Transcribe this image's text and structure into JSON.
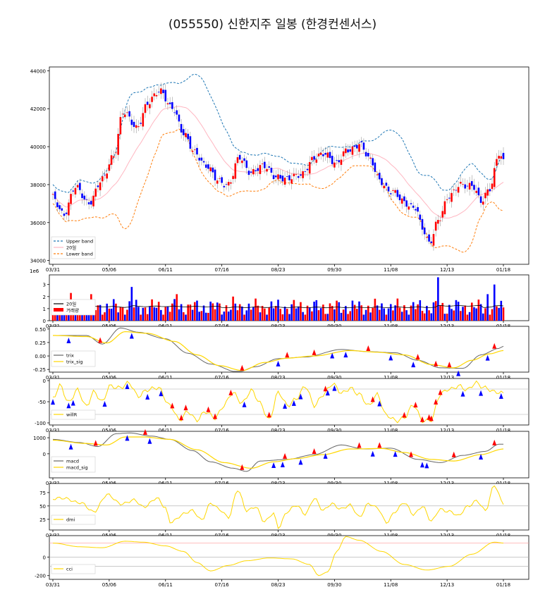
{
  "title": "(055550) 신한지주 일봉 (한경컨센서스)",
  "x_ticks": [
    "03/31",
    "05/06",
    "06/11",
    "07/16",
    "08/23",
    "09/30",
    "11/08",
    "12/13",
    "01/18"
  ],
  "colors": {
    "up": "#ff0000",
    "down": "#0000ff",
    "band": "#1f77b4",
    "lower": "#ff7f0e",
    "ma": "#ffb6c1",
    "signal": "#ffd700",
    "line": "#666666"
  },
  "chart_data": [
    {
      "type": "candlestick",
      "panel": "price",
      "ylim": [
        33800,
        44200
      ],
      "yticks": [
        34000,
        36000,
        38000,
        40000,
        42000,
        44000
      ],
      "legend": [
        "Upper band",
        "20일",
        "Lower band"
      ],
      "close_anchors": [
        [
          0,
          37300
        ],
        [
          5,
          36500
        ],
        [
          10,
          37800
        ],
        [
          16,
          37100
        ],
        [
          22,
          38200
        ],
        [
          27,
          39600
        ],
        [
          31,
          41800
        ],
        [
          37,
          41000
        ],
        [
          42,
          42300
        ],
        [
          48,
          42900
        ],
        [
          53,
          42100
        ],
        [
          58,
          40600
        ],
        [
          63,
          39800
        ],
        [
          68,
          38900
        ],
        [
          73,
          38300
        ],
        [
          78,
          38000
        ],
        [
          83,
          39400
        ],
        [
          88,
          38700
        ],
        [
          94,
          38900
        ],
        [
          99,
          38500
        ],
        [
          104,
          38200
        ],
        [
          110,
          38600
        ],
        [
          116,
          39300
        ],
        [
          121,
          39700
        ],
        [
          126,
          39100
        ],
        [
          131,
          39800
        ],
        [
          136,
          40200
        ],
        [
          141,
          39200
        ],
        [
          145,
          38300
        ],
        [
          150,
          37600
        ],
        [
          156,
          37100
        ],
        [
          161,
          36800
        ],
        [
          164,
          35600
        ],
        [
          167,
          34900
        ],
        [
          171,
          36200
        ],
        [
          176,
          37300
        ],
        [
          181,
          38100
        ],
        [
          186,
          37900
        ],
        [
          190,
          37100
        ],
        [
          194,
          37900
        ],
        [
          198,
          39600
        ],
        [
          200,
          39100
        ]
      ]
    },
    {
      "type": "bar",
      "panel": "volume",
      "ylim": [
        0,
        3.8
      ],
      "yticks": [
        0,
        1,
        2,
        3
      ],
      "exponent_label": "1e6",
      "legend": [
        "20일",
        "거래량"
      ],
      "spikes": [
        [
          8,
          2.3
        ],
        [
          17,
          2.2
        ],
        [
          35,
          2.8
        ],
        [
          55,
          2.2
        ],
        [
          80,
          2.0
        ],
        [
          171,
          3.6
        ],
        [
          193,
          2.2
        ],
        [
          196,
          3.0
        ]
      ]
    },
    {
      "type": "line",
      "panel": "trix",
      "ylim": [
        -0.3,
        0.55
      ],
      "yticks": [
        0.5,
        0.25,
        0,
        -0.25
      ],
      "legend": [
        "trix",
        "trix_sig"
      ],
      "anchors": [
        [
          0,
          0.38
        ],
        [
          15,
          0.38
        ],
        [
          22,
          0.22
        ],
        [
          30,
          0.52
        ],
        [
          38,
          0.44
        ],
        [
          50,
          0.32
        ],
        [
          60,
          0.05
        ],
        [
          70,
          -0.15
        ],
        [
          82,
          -0.3
        ],
        [
          90,
          -0.2
        ],
        [
          100,
          -0.05
        ],
        [
          112,
          -0.02
        ],
        [
          128,
          0.12
        ],
        [
          140,
          0.08
        ],
        [
          152,
          0.06
        ],
        [
          162,
          -0.08
        ],
        [
          172,
          -0.22
        ],
        [
          182,
          -0.23
        ],
        [
          190,
          0.02
        ],
        [
          198,
          0.14
        ],
        [
          200,
          0.18
        ]
      ],
      "sig_anchors": [
        [
          0,
          0.38
        ],
        [
          15,
          0.36
        ],
        [
          24,
          0.24
        ],
        [
          32,
          0.45
        ],
        [
          42,
          0.42
        ],
        [
          54,
          0.27
        ],
        [
          64,
          0.02
        ],
        [
          74,
          -0.18
        ],
        [
          84,
          -0.27
        ],
        [
          94,
          -0.12
        ],
        [
          104,
          -0.04
        ],
        [
          116,
          0.0
        ],
        [
          132,
          0.1
        ],
        [
          144,
          0.07
        ],
        [
          156,
          0.02
        ],
        [
          168,
          -0.16
        ],
        [
          178,
          -0.22
        ],
        [
          186,
          -0.08
        ],
        [
          194,
          0.04
        ],
        [
          200,
          0.1
        ]
      ],
      "buy": [
        7,
        35,
        100,
        124,
        130,
        150,
        160,
        180,
        193
      ],
      "sell": [
        21,
        84,
        104,
        116,
        140,
        162,
        170,
        176,
        196
      ]
    },
    {
      "type": "line",
      "panel": "willr",
      "ylim": [
        -105,
        5
      ],
      "yticks": [
        0,
        -50,
        -100
      ],
      "legend": [
        "willR"
      ],
      "anchors": [
        [
          0,
          -40
        ],
        [
          3,
          -10
        ],
        [
          7,
          -55
        ],
        [
          11,
          -20
        ],
        [
          15,
          -60
        ],
        [
          18,
          -30
        ],
        [
          22,
          -50
        ],
        [
          25,
          -10
        ],
        [
          30,
          -20
        ],
        [
          34,
          -5
        ],
        [
          38,
          -35
        ],
        [
          42,
          -25
        ],
        [
          47,
          -15
        ],
        [
          52,
          -60
        ],
        [
          56,
          -95
        ],
        [
          60,
          -70
        ],
        [
          64,
          -95
        ],
        [
          68,
          -75
        ],
        [
          72,
          -85
        ],
        [
          76,
          -60
        ],
        [
          80,
          -30
        ],
        [
          84,
          -50
        ],
        [
          88,
          -25
        ],
        [
          92,
          -55
        ],
        [
          96,
          -90
        ],
        [
          100,
          -30
        ],
        [
          104,
          -60
        ],
        [
          108,
          -40
        ],
        [
          112,
          -15
        ],
        [
          116,
          -60
        ],
        [
          120,
          -30
        ],
        [
          124,
          -10
        ],
        [
          128,
          -30
        ],
        [
          132,
          -15
        ],
        [
          136,
          -35
        ],
        [
          140,
          -60
        ],
        [
          144,
          -30
        ],
        [
          148,
          -85
        ],
        [
          152,
          -95
        ],
        [
          156,
          -85
        ],
        [
          160,
          -60
        ],
        [
          164,
          -95
        ],
        [
          168,
          -90
        ],
        [
          172,
          -35
        ],
        [
          176,
          -20
        ],
        [
          180,
          -10
        ],
        [
          184,
          -25
        ],
        [
          188,
          -5
        ],
        [
          192,
          -15
        ],
        [
          196,
          -30
        ],
        [
          200,
          -30
        ]
      ],
      "buy": [
        0,
        7,
        9,
        23,
        33,
        42,
        48,
        85,
        103,
        107,
        110,
        122,
        125,
        145,
        182,
        190,
        199
      ],
      "sell": [
        53,
        57,
        59,
        69,
        72,
        79,
        96,
        121,
        142,
        156,
        161,
        164,
        167,
        168,
        170,
        172
      ],
      "guides": [
        -20,
        -80
      ]
    },
    {
      "type": "line",
      "panel": "macd",
      "ylim": [
        -1500,
        1400
      ],
      "yticks": [
        1000,
        0
      ],
      "legend": [
        "macd",
        "macd_sig"
      ],
      "anchors": [
        [
          0,
          900
        ],
        [
          12,
          700
        ],
        [
          20,
          450
        ],
        [
          28,
          1250
        ],
        [
          34,
          1300
        ],
        [
          44,
          1100
        ],
        [
          52,
          900
        ],
        [
          62,
          200
        ],
        [
          70,
          -500
        ],
        [
          80,
          -900
        ],
        [
          86,
          -1100
        ],
        [
          92,
          -450
        ],
        [
          104,
          -350
        ],
        [
          116,
          -50
        ],
        [
          128,
          550
        ],
        [
          138,
          300
        ],
        [
          150,
          350
        ],
        [
          162,
          -350
        ],
        [
          172,
          -550
        ],
        [
          182,
          -100
        ],
        [
          192,
          150
        ],
        [
          198,
          600
        ],
        [
          200,
          600
        ]
      ],
      "sig_anchors": [
        [
          0,
          850
        ],
        [
          14,
          650
        ],
        [
          24,
          550
        ],
        [
          32,
          1050
        ],
        [
          40,
          1050
        ],
        [
          52,
          900
        ],
        [
          64,
          250
        ],
        [
          76,
          -550
        ],
        [
          88,
          -900
        ],
        [
          98,
          -500
        ],
        [
          108,
          -300
        ],
        [
          120,
          -50
        ],
        [
          132,
          300
        ],
        [
          146,
          330
        ],
        [
          156,
          80
        ],
        [
          168,
          -350
        ],
        [
          178,
          -450
        ],
        [
          190,
          -50
        ],
        [
          200,
          300
        ]
      ],
      "buy": [
        8,
        33,
        43,
        98,
        102,
        110,
        121,
        142,
        152,
        164,
        166,
        190
      ],
      "sell": [
        19,
        41,
        84,
        103,
        116,
        136,
        145,
        159,
        178,
        196
      ]
    },
    {
      "type": "line",
      "panel": "dmi",
      "ylim": [
        5,
        92
      ],
      "yticks": [
        75,
        50,
        25
      ],
      "legend": [
        "dmi"
      ],
      "anchors": [
        [
          0,
          62
        ],
        [
          6,
          65
        ],
        [
          12,
          55
        ],
        [
          18,
          40
        ],
        [
          24,
          70
        ],
        [
          30,
          55
        ],
        [
          36,
          60
        ],
        [
          40,
          48
        ],
        [
          46,
          65
        ],
        [
          50,
          45
        ],
        [
          52,
          20
        ],
        [
          58,
          35
        ],
        [
          62,
          40
        ],
        [
          66,
          25
        ],
        [
          70,
          55
        ],
        [
          74,
          42
        ],
        [
          78,
          30
        ],
        [
          82,
          80
        ],
        [
          86,
          40
        ],
        [
          90,
          50
        ],
        [
          94,
          20
        ],
        [
          98,
          35
        ],
        [
          100,
          10
        ],
        [
          104,
          40
        ],
        [
          108,
          50
        ],
        [
          112,
          35
        ],
        [
          116,
          65
        ],
        [
          120,
          40
        ],
        [
          124,
          55
        ],
        [
          128,
          45
        ],
        [
          132,
          50
        ],
        [
          136,
          30
        ],
        [
          140,
          55
        ],
        [
          144,
          45
        ],
        [
          148,
          20
        ],
        [
          152,
          40
        ],
        [
          156,
          55
        ],
        [
          160,
          35
        ],
        [
          164,
          50
        ],
        [
          168,
          20
        ],
        [
          172,
          45
        ],
        [
          176,
          40
        ],
        [
          180,
          30
        ],
        [
          184,
          50
        ],
        [
          188,
          60
        ],
        [
          192,
          40
        ],
        [
          196,
          90
        ],
        [
          200,
          55
        ]
      ],
      "guides": [
        50
      ]
    },
    {
      "type": "line",
      "panel": "cci",
      "ylim": [
        -240,
        230
      ],
      "yticks": [
        0,
        -200
      ],
      "legend": [
        "cci"
      ],
      "anchors": [
        [
          0,
          150
        ],
        [
          12,
          110
        ],
        [
          22,
          100
        ],
        [
          32,
          170
        ],
        [
          40,
          160
        ],
        [
          50,
          120
        ],
        [
          58,
          60
        ],
        [
          64,
          -60
        ],
        [
          70,
          -150
        ],
        [
          78,
          -90
        ],
        [
          86,
          -40
        ],
        [
          96,
          -10
        ],
        [
          106,
          -20
        ],
        [
          114,
          -80
        ],
        [
          118,
          -200
        ],
        [
          122,
          -160
        ],
        [
          126,
          60
        ],
        [
          130,
          220
        ],
        [
          136,
          180
        ],
        [
          146,
          60
        ],
        [
          156,
          -80
        ],
        [
          166,
          -140
        ],
        [
          176,
          -100
        ],
        [
          186,
          30
        ],
        [
          196,
          160
        ],
        [
          200,
          150
        ]
      ],
      "guides": [
        150,
        0,
        -100
      ]
    }
  ]
}
